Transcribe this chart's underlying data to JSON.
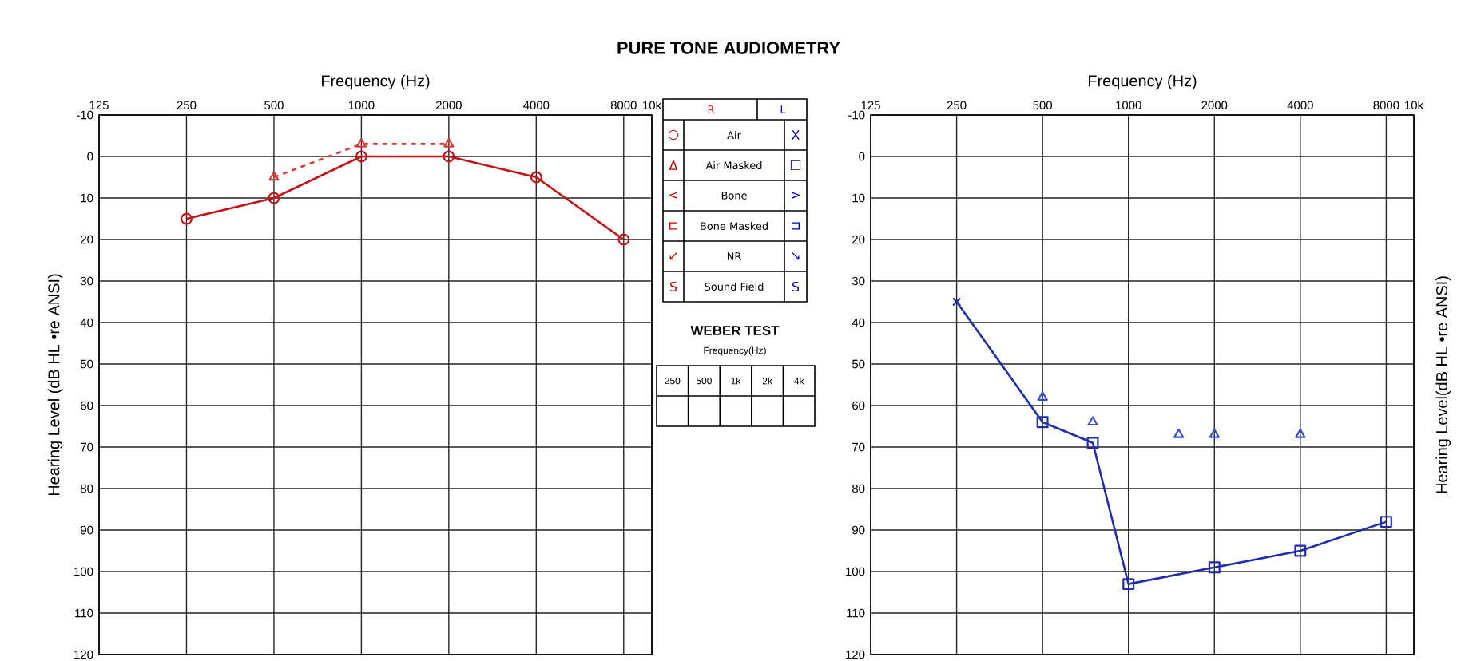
{
  "chart_data": [
    {
      "type": "line",
      "xlabel": "Frequency (Hz)",
      "ylabel": "Hearing Level (dB HL  •re ANSI)",
      "log": "x",
      "grid": true,
      "xlim": [
        125,
        10000
      ],
      "xticks": [
        125,
        250,
        500,
        1000,
        2000,
        4000,
        8000,
        {
          "value": 10000,
          "label": "10k"
        }
      ],
      "ylim": [
        120,
        -10
      ],
      "yticks": [
        -10,
        0,
        10,
        20,
        30,
        40,
        50,
        60,
        70,
        80,
        90,
        100,
        110,
        120
      ],
      "series": [
        {
          "color": "#c0161a",
          "marker": "circle",
          "line_style": "solid",
          "x": [
            250,
            500,
            1000,
            2000,
            4000,
            8000
          ],
          "values": [
            15,
            10,
            0,
            0,
            5,
            20
          ]
        },
        {
          "color": "#d83a3a",
          "marker": "triangle",
          "line_style": "dashed",
          "x": [
            500,
            1000,
            2000
          ],
          "values": [
            5,
            -3,
            -3
          ]
        }
      ]
    },
    {
      "type": "other",
      "title": "PURE TONE AUDIOMETRY",
      "annotations": [
        "R",
        "L",
        "○",
        "Air",
        "X",
        "Δ",
        "Air Masked",
        "□",
        "<",
        "Bone",
        ">",
        "⊏",
        "Bone Masked",
        "⊐",
        "↙",
        "NR",
        "↘",
        "S",
        "Sound Field",
        "S",
        "WEBER TEST",
        "Frequency(Hz)",
        "250",
        "500",
        "1k",
        "2k",
        "4k"
      ]
    },
    {
      "type": "line",
      "xlabel": "Frequency (Hz)",
      "ylabel": "Hearing Level(dB HL  •re ANSI)",
      "log": "x",
      "grid": true,
      "xlim": [
        125,
        10000
      ],
      "xticks": [
        125,
        250,
        500,
        1000,
        2000,
        4000,
        8000,
        {
          "value": 10000,
          "label": "10k"
        }
      ],
      "ylim": [
        120,
        -10
      ],
      "yticks": [
        -10,
        0,
        10,
        20,
        30,
        40,
        50,
        60,
        70,
        80,
        90,
        100,
        110,
        120
      ],
      "series": [
        {
          "color": "#1f2ea8",
          "marker": "none",
          "line_style": "solid",
          "x": [
            250,
            500,
            750,
            1000,
            2000,
            4000,
            8000
          ],
          "values": [
            35,
            64,
            69,
            103,
            99,
            95,
            88
          ]
        },
        {
          "type": "scatter",
          "color": "#1f2ea8",
          "marker": "cross",
          "x": [
            250
          ],
          "values": [
            35
          ]
        },
        {
          "type": "scatter",
          "color": "#1f2ea8",
          "marker": "square",
          "x": [
            500,
            750,
            1000,
            2000,
            4000,
            8000
          ],
          "values": [
            64,
            69,
            103,
            99,
            95,
            88
          ]
        },
        {
          "type": "scatter",
          "color": "#3a4fc8",
          "marker": "triangle",
          "x": [
            500,
            750,
            1500,
            2000,
            4000
          ],
          "values": [
            58,
            64,
            67,
            67,
            67
          ]
        }
      ]
    }
  ]
}
